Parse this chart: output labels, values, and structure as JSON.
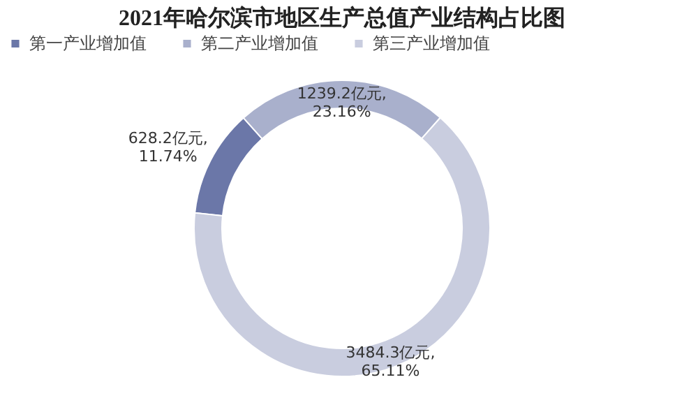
{
  "chart_data": {
    "type": "donut",
    "title": "2021年哈尔滨市地区生产总值产业结构占比图",
    "categories": [
      "第一产业增加值",
      "第二产业增加值",
      "第三产业增加值"
    ],
    "values": [
      628.2,
      1239.2,
      3484.3
    ],
    "colors": [
      "#6b77a8",
      "#a9b0cc",
      "#c9cddf"
    ],
    "value_labels": [
      "628.2亿元,\n11.74%",
      "1239.2亿元,\n23.16%",
      "3484.3亿元,\n65.11%"
    ],
    "legend": "top"
  }
}
